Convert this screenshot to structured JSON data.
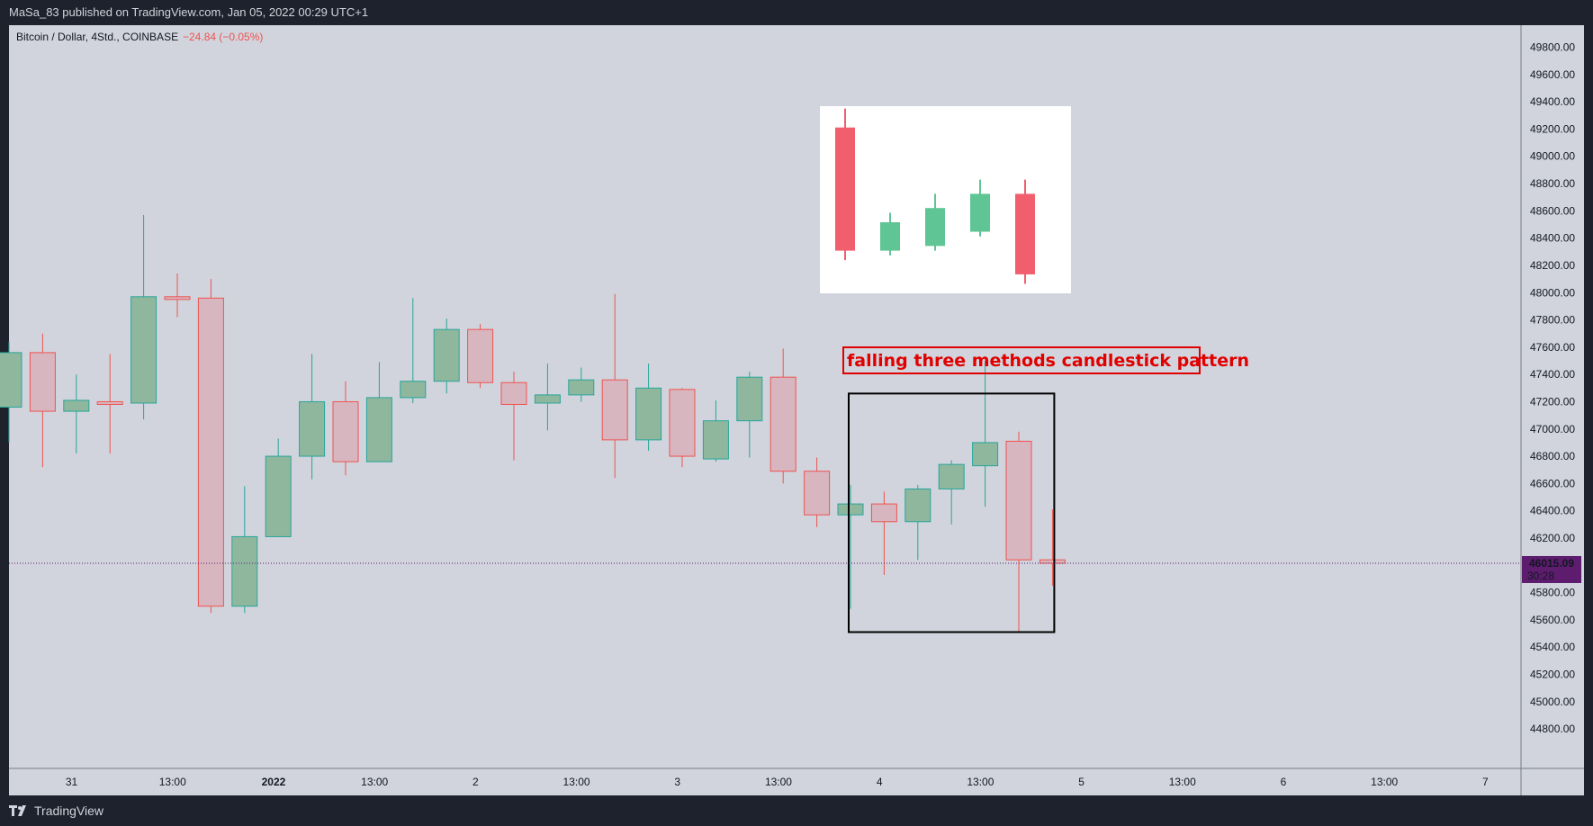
{
  "header": {
    "published_text": "MaSa_83 published on TradingView.com, Jan 05, 2022 00:29 UTC+1"
  },
  "footer": {
    "brand": "TradingView"
  },
  "chart_data": {
    "type": "candlestick",
    "legend": {
      "symbol": "Bitcoin / Dollar, 4Std., COINBASE",
      "change": "−24.84 (−0.05%)"
    },
    "price": {
      "current_label": "46015.09",
      "current_value": 46015.09,
      "countdown": "30:28"
    },
    "y_axis": {
      "ylim": [
        44510,
        49962
      ],
      "ticks": [
        44800,
        45000,
        45200,
        45400,
        45600,
        45800,
        46000,
        46200,
        46400,
        46600,
        46800,
        47000,
        47200,
        47400,
        47600,
        47800,
        48000,
        48200,
        48400,
        48600,
        48800,
        49000,
        49200,
        49400,
        49600,
        49800
      ],
      "tick_labels": [
        "44800.00",
        "45000.00",
        "45200.00",
        "45400.00",
        "45600.00",
        "45800.00",
        "46000.00",
        "46200.00",
        "46400.00",
        "46600.00",
        "46800.00",
        "47000.00",
        "47200.00",
        "47400.00",
        "47600.00",
        "47800.00",
        "48000.00",
        "48200.00",
        "48400.00",
        "48600.00",
        "48800.00",
        "49000.00",
        "49200.00",
        "49400.00",
        "49600.00",
        "49800.00"
      ]
    },
    "x_axis": {
      "tick_labels": [
        {
          "label": "31",
          "bar": 1.86,
          "bold": false
        },
        {
          "label": "13:00",
          "bar": 4.86,
          "bold": false
        },
        {
          "label": "2022",
          "bar": 7.86,
          "bold": true
        },
        {
          "label": "13:00",
          "bar": 10.86,
          "bold": false
        },
        {
          "label": "2",
          "bar": 13.86,
          "bold": false
        },
        {
          "label": "13:00",
          "bar": 16.86,
          "bold": false
        },
        {
          "label": "3",
          "bar": 19.86,
          "bold": false
        },
        {
          "label": "13:00",
          "bar": 22.86,
          "bold": false
        },
        {
          "label": "4",
          "bar": 25.86,
          "bold": false
        },
        {
          "label": "13:00",
          "bar": 28.86,
          "bold": false
        },
        {
          "label": "5",
          "bar": 31.86,
          "bold": false
        },
        {
          "label": "13:00",
          "bar": 34.86,
          "bold": false
        },
        {
          "label": "6",
          "bar": 37.86,
          "bold": false
        },
        {
          "label": "13:00",
          "bar": 40.86,
          "bold": false
        },
        {
          "label": "7",
          "bar": 43.86,
          "bold": false
        }
      ]
    },
    "candles": [
      {
        "o": 47160,
        "h": 47640,
        "l": 46900,
        "c": 47560
      },
      {
        "o": 47560,
        "h": 47700,
        "l": 46720,
        "c": 47130
      },
      {
        "o": 47130,
        "h": 47400,
        "l": 46820,
        "c": 47210
      },
      {
        "o": 47200,
        "h": 47550,
        "l": 46820,
        "c": 47180
      },
      {
        "o": 47190,
        "h": 48570,
        "l": 47070,
        "c": 47970
      },
      {
        "o": 47970,
        "h": 48140,
        "l": 47820,
        "c": 47950
      },
      {
        "o": 47960,
        "h": 48100,
        "l": 45650,
        "c": 45700
      },
      {
        "o": 45700,
        "h": 46580,
        "l": 45650,
        "c": 46210
      },
      {
        "o": 46210,
        "h": 46930,
        "l": 46210,
        "c": 46800
      },
      {
        "o": 46800,
        "h": 47550,
        "l": 46630,
        "c": 47200
      },
      {
        "o": 47200,
        "h": 47350,
        "l": 46660,
        "c": 46760
      },
      {
        "o": 46760,
        "h": 47490,
        "l": 46760,
        "c": 47230
      },
      {
        "o": 47230,
        "h": 47960,
        "l": 47190,
        "c": 47350
      },
      {
        "o": 47350,
        "h": 47810,
        "l": 47260,
        "c": 47730
      },
      {
        "o": 47730,
        "h": 47770,
        "l": 47300,
        "c": 47340
      },
      {
        "o": 47340,
        "h": 47420,
        "l": 46770,
        "c": 47180
      },
      {
        "o": 47190,
        "h": 47480,
        "l": 46990,
        "c": 47250
      },
      {
        "o": 47250,
        "h": 47450,
        "l": 47200,
        "c": 47360
      },
      {
        "o": 47360,
        "h": 47990,
        "l": 46640,
        "c": 46920
      },
      {
        "o": 46920,
        "h": 47480,
        "l": 46840,
        "c": 47300
      },
      {
        "o": 47290,
        "h": 47300,
        "l": 46720,
        "c": 46800
      },
      {
        "o": 46780,
        "h": 47210,
        "l": 46760,
        "c": 47060
      },
      {
        "o": 47060,
        "h": 47420,
        "l": 46790,
        "c": 47380
      },
      {
        "o": 47380,
        "h": 47590,
        "l": 46600,
        "c": 46690
      },
      {
        "o": 46690,
        "h": 46790,
        "l": 46280,
        "c": 46370
      },
      {
        "o": 46370,
        "h": 46590,
        "l": 45680,
        "c": 46450
      },
      {
        "o": 46450,
        "h": 46540,
        "l": 45930,
        "c": 46320
      },
      {
        "o": 46320,
        "h": 46590,
        "l": 46040,
        "c": 46560
      },
      {
        "o": 46560,
        "h": 46770,
        "l": 46300,
        "c": 46740
      },
      {
        "o": 46730,
        "h": 47500,
        "l": 46430,
        "c": 46900
      },
      {
        "o": 46910,
        "h": 46980,
        "l": 45510,
        "c": 46040
      },
      {
        "o": 46040,
        "h": 46410,
        "l": 45850,
        "c": 46015
      }
    ],
    "annotation_box": {
      "from_bar": 25,
      "to_bar": 31,
      "y_top": 47260,
      "y_bottom": 45510,
      "label": "falling three methods candlestick pattern"
    },
    "inset_example": {
      "note": "illustrative candles inside white picture",
      "candles": [
        {
          "o": 3,
          "h": 3.4,
          "l": 0.2,
          "c": 0.4,
          "bull": false
        },
        {
          "o": 0.4,
          "h": 1.2,
          "l": 0.3,
          "c": 1.0,
          "bull": true
        },
        {
          "o": 0.5,
          "h": 1.6,
          "l": 0.4,
          "c": 1.3,
          "bull": true
        },
        {
          "o": 0.8,
          "h": 1.9,
          "l": 0.7,
          "c": 1.6,
          "bull": true
        },
        {
          "o": 1.6,
          "h": 1.9,
          "l": -0.3,
          "c": -0.1,
          "bull": false
        }
      ]
    },
    "colors": {
      "background": "#d1d4dc",
      "bull_body": "#8fb79e",
      "bull_border": "#26a69a",
      "bear_body": "#d8b6bf",
      "bear_border": "#ef5350",
      "bull_wick": "#26a69a",
      "bear_wick": "#ef5350",
      "price_label": "#5d1c6e",
      "annotation": "#e00000",
      "inset_bull": "#5fc595",
      "inset_bear": "#f15f6f"
    }
  }
}
